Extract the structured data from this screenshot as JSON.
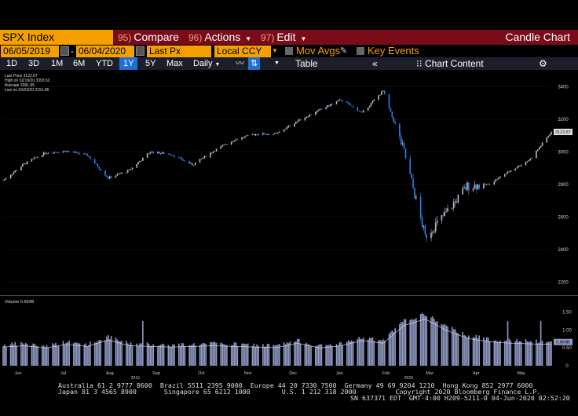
{
  "toolbar": {
    "ticker": "SPX Index",
    "compare": {
      "num": "95)",
      "label": "Compare"
    },
    "actions": {
      "num": "96)",
      "label": "Actions"
    },
    "edit": {
      "num": "97)",
      "label": "Edit"
    },
    "chart_name": "Candle Chart"
  },
  "settings": {
    "start_date": "06/05/2019",
    "dash": "-",
    "end_date": "06/04/2020",
    "price_field": "Last Px",
    "currency": "Local CCY",
    "mov_avgs": "Mov Avgs",
    "key_events": "Key Events"
  },
  "periods": [
    "1D",
    "3D",
    "1M",
    "6M",
    "YTD",
    "1Y",
    "5Y",
    "Max"
  ],
  "selected_period": "1Y",
  "frequency": "Daily",
  "table_label": "Table",
  "chart_content_label": "Chart Content",
  "legend": {
    "last_price": "Last Price 3122.87",
    "high": "High on 02/19/20 3393.52",
    "average": "Average 2991.95",
    "low": "Low on 03/23/20 2191.86",
    "volume": "Volume 0.664B"
  },
  "current_price_tag": "3122.87",
  "current_volume_tag": "0.664B",
  "colors": {
    "up": "#bdbdbd",
    "down": "#2f80ed",
    "accent": "#f5a000",
    "bar_red": "#7a0c1a"
  },
  "chart_data": [
    {
      "type": "candlestick",
      "series_name": "SPX Index",
      "x_dates": [
        "2019-06-05",
        "2019-06-19",
        "2019-07-03",
        "2019-07-17",
        "2019-07-31",
        "2019-08-14",
        "2019-08-28",
        "2019-09-11",
        "2019-09-25",
        "2019-10-09",
        "2019-10-23",
        "2019-11-06",
        "2019-11-20",
        "2019-12-04",
        "2019-12-18",
        "2020-01-02",
        "2020-01-16",
        "2020-01-30",
        "2020-02-13",
        "2020-02-27",
        "2020-03-12",
        "2020-03-26",
        "2020-04-09",
        "2020-04-23",
        "2020-05-07",
        "2020-05-21",
        "2020-06-04"
      ],
      "close": [
        2826,
        2926,
        2995,
        3005,
        2980,
        2840,
        2887,
        3000,
        2985,
        2920,
        3005,
        3075,
        3110,
        3110,
        3190,
        3258,
        3320,
        3240,
        3375,
        3000,
        2480,
        2625,
        2790,
        2800,
        2880,
        2955,
        3122.87
      ],
      "high_value": 3393.52,
      "low_value": 2191.86,
      "average": 2991.95,
      "y_ticks": [
        2200,
        2400,
        2600,
        2800,
        3000,
        3200,
        3400
      ],
      "ylim": [
        2150,
        3460
      ]
    },
    {
      "type": "bar",
      "series_name": "Volume",
      "y_ticks": [
        "0",
        "0.50",
        "1.00",
        "1.50"
      ],
      "ylim": [
        0,
        1.6
      ],
      "values_b": [
        0.58,
        0.62,
        0.55,
        0.66,
        0.6,
        0.8,
        0.62,
        0.6,
        0.58,
        0.6,
        0.62,
        0.6,
        0.58,
        0.56,
        0.7,
        0.55,
        0.62,
        0.78,
        0.7,
        1.25,
        1.45,
        1.1,
        0.85,
        0.75,
        0.7,
        0.68,
        0.664
      ]
    }
  ],
  "x_month_labels": [
    "Jun",
    "Jul",
    "Aug",
    "Sep",
    "Oct",
    "Nov",
    "Dec",
    "Jan",
    "Feb",
    "Mar",
    "Apr",
    "May"
  ],
  "year_labels": [
    "2019",
    "2020"
  ],
  "footer": {
    "line1": "Australia 61 2 9777 8600  Brazil 5511 2395 9000  Europe 44 20 7330 7500  Germany 49 69 9204 1210  Hong Kong 852 2977 6000",
    "line2": "Japan 81 3 4565 8900       Singapore 65 6212 1000        U.S. 1 212 318 2000          Copyright 2020 Bloomberg Finance L.P.",
    "line3": "SN 637371 EDT  GMT-4:00 H209-5211-0 04-Jun-2020 02:52:20"
  }
}
